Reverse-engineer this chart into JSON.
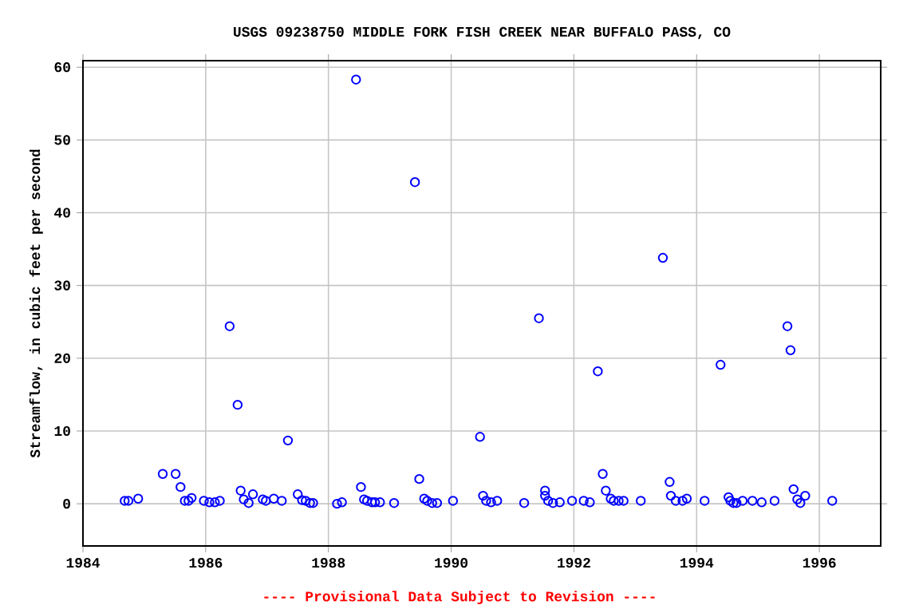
{
  "chart_data": {
    "type": "scatter",
    "title": "USGS 09238750 MIDDLE FORK FISH CREEK NEAR BUFFALO PASS, CO",
    "ylabel": "Streamflow, in cubic feet per second",
    "annotations": [
      "---- Provisional Data Subject to Revision ----"
    ],
    "xlim": [
      1984,
      1997
    ],
    "ylim": [
      -5.8,
      60.9
    ],
    "xticks": [
      1984,
      1986,
      1988,
      1990,
      1992,
      1994,
      1996
    ],
    "yticks": [
      0,
      10,
      20,
      30,
      40,
      50,
      60
    ],
    "grid": true,
    "marker": "circle",
    "series": [
      {
        "color": "#0000ff",
        "x": [
          1984.68,
          1984.74,
          1984.9,
          1985.3,
          1985.51,
          1985.59,
          1985.66,
          1985.72,
          1985.77,
          1985.97,
          1986.06,
          1986.15,
          1986.23,
          1986.39,
          1986.52,
          1986.57,
          1986.62,
          1986.7,
          1986.77,
          1986.93,
          1986.98,
          1987.11,
          1987.24,
          1987.34,
          1987.5,
          1987.57,
          1987.63,
          1987.7,
          1987.75,
          1988.14,
          1988.22,
          1988.45,
          1988.53,
          1988.58,
          1988.63,
          1988.71,
          1988.76,
          1988.84,
          1989.07,
          1989.41,
          1989.48,
          1989.56,
          1989.61,
          1989.69,
          1989.77,
          1990.03,
          1990.47,
          1990.52,
          1990.57,
          1990.65,
          1990.75,
          1991.19,
          1991.43,
          1991.53,
          1991.53,
          1991.58,
          1991.66,
          1991.77,
          1991.97,
          1992.16,
          1992.26,
          1992.39,
          1992.47,
          1992.52,
          1992.6,
          1992.65,
          1992.73,
          1992.81,
          1993.09,
          1993.45,
          1993.56,
          1993.58,
          1993.66,
          1993.77,
          1993.84,
          1994.13,
          1994.39,
          1994.52,
          1994.55,
          1994.6,
          1994.65,
          1994.75,
          1994.91,
          1995.06,
          1995.27,
          1995.48,
          1995.53,
          1995.58,
          1995.64,
          1995.69,
          1995.77,
          1996.21
        ],
        "values": [
          0.4,
          0.4,
          0.7,
          4.1,
          4.1,
          2.3,
          0.4,
          0.4,
          0.8,
          0.4,
          0.2,
          0.2,
          0.4,
          24.4,
          13.6,
          1.8,
          0.6,
          0.1,
          1.3,
          0.6,
          0.4,
          0.7,
          0.4,
          8.7,
          1.3,
          0.5,
          0.4,
          0.1,
          0.1,
          0.0,
          0.2,
          58.3,
          2.3,
          0.6,
          0.4,
          0.2,
          0.2,
          0.2,
          0.1,
          44.2,
          3.4,
          0.7,
          0.4,
          0.1,
          0.1,
          0.4,
          9.2,
          1.1,
          0.4,
          0.2,
          0.4,
          0.1,
          25.5,
          1.8,
          1.1,
          0.4,
          0.1,
          0.2,
          0.4,
          0.4,
          0.2,
          18.2,
          4.1,
          1.8,
          0.7,
          0.4,
          0.4,
          0.4,
          0.4,
          33.8,
          3.0,
          1.1,
          0.4,
          0.4,
          0.7,
          0.4,
          19.1,
          0.9,
          0.4,
          0.1,
          0.1,
          0.4,
          0.4,
          0.2,
          0.4,
          24.4,
          21.1,
          2.0,
          0.6,
          0.1,
          1.1,
          0.4
        ]
      }
    ]
  }
}
